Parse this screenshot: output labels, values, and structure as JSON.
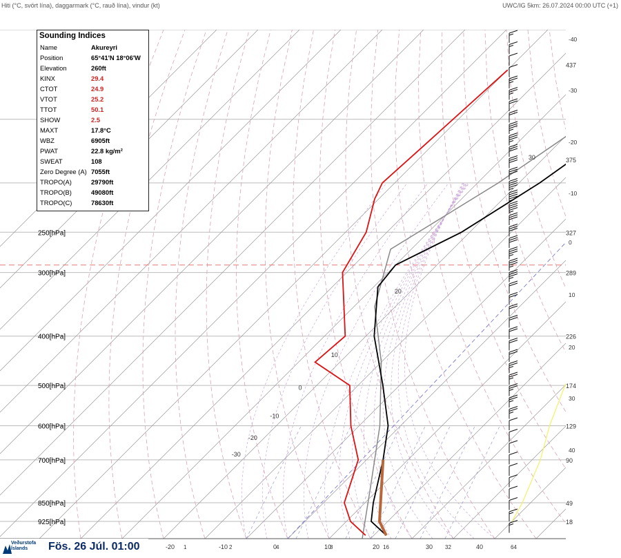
{
  "header": {
    "left": "Hiti (°C, svört lína), daggarmark (°C, rauð lína), vindur (kt)",
    "right": "UWC/IG 5km: 26.07.2024 00:00 UTC (+1)"
  },
  "indices": {
    "title": "Sounding Indices",
    "rows": [
      {
        "k": "Name",
        "v": "Akureyri"
      },
      {
        "k": "Position",
        "v": "65°41'N 18°06'W"
      },
      {
        "k": "Elevation",
        "v": "260ft"
      },
      {
        "k": "KINX",
        "v": "29.4",
        "warn": true
      },
      {
        "k": "CTOT",
        "v": "24.9",
        "warn": true
      },
      {
        "k": "VTOT",
        "v": "25.2",
        "warn": true
      },
      {
        "k": "TTOT",
        "v": "50.1",
        "warn": true
      },
      {
        "k": "SHOW",
        "v": "2.5",
        "warn": true
      },
      {
        "k": "MAXT",
        "v": "17.8°C"
      },
      {
        "k": "WBZ",
        "v": "6905ft"
      },
      {
        "k": "PWAT",
        "v": "22.8 kg/m²"
      },
      {
        "k": "SWEAT",
        "v": "108"
      },
      {
        "k": "Zero Degree (A)",
        "v": "7055ft"
      },
      {
        "k": "TROPO(A)",
        "v": "29790ft"
      },
      {
        "k": "TROPO(B)",
        "v": "49080ft"
      },
      {
        "k": "TROPO(C)",
        "v": "78630ft"
      }
    ]
  },
  "footer": {
    "logo_text_1": "Veðurstofa",
    "logo_text_2": "Íslands",
    "date": "Fös. 26 Júl. 01:00"
  },
  "chart_data": {
    "type": "line",
    "title": "",
    "xlabel": "",
    "ylabel": "",
    "pressure_ticks": [
      {
        "p": 250,
        "label": "250[hPa]",
        "right": "327"
      },
      {
        "p": 300,
        "label": "300[hPa]",
        "right": "289"
      },
      {
        "p": 400,
        "label": "400[hPa]",
        "right": "226"
      },
      {
        "p": 500,
        "label": "500[hPa]",
        "right": "174"
      },
      {
        "p": 600,
        "label": "600[hPa]",
        "right": "129"
      },
      {
        "p": 700,
        "label": "700[hPa]",
        "right": "90"
      },
      {
        "p": 850,
        "label": "850[hPa]",
        "right": "49"
      },
      {
        "p": 925,
        "label": "925[hPa]",
        "right": "18"
      }
    ],
    "extra_right_labels": [
      {
        "p": 117,
        "label": "437"
      },
      {
        "p": 180,
        "label": "375"
      }
    ],
    "temp_axis_right": [
      "-40",
      "-30",
      "-20",
      "-10",
      "0",
      "10",
      "20",
      "30",
      "40"
    ],
    "bottom_axis_labels": [
      "-20",
      "-10",
      "0",
      "10",
      "20",
      "30",
      "40"
    ],
    "mixing_ratio_labels": [
      "1",
      "2",
      "4",
      "8",
      "16",
      "32",
      "64"
    ],
    "isotherm_labels": [
      "30",
      "20",
      "10",
      "0",
      "-10",
      "-20",
      "-30"
    ],
    "tropopause_levels_hpa": [
      96,
      290
    ],
    "series": [
      {
        "name": "",
        "color": "#000000",
        "points": [
          [
            -24,
            120
          ],
          [
            -35,
            200
          ],
          [
            -42,
            250
          ],
          [
            -50,
            290
          ],
          [
            -49,
            320
          ],
          [
            -38,
            400
          ],
          [
            -24,
            500
          ],
          [
            -13,
            600
          ],
          [
            -6,
            700
          ],
          [
            2,
            850
          ],
          [
            6,
            925
          ],
          [
            13,
            985
          ]
        ]
      },
      {
        "name": "",
        "color": "#dd1111",
        "points": [
          [
            -70,
            120
          ],
          [
            -72,
            170
          ],
          [
            -73,
            200
          ],
          [
            -71,
            215
          ],
          [
            -65,
            250
          ],
          [
            -61,
            300
          ],
          [
            -45,
            400
          ],
          [
            -46,
            450
          ],
          [
            -32,
            500
          ],
          [
            -22,
            600
          ],
          [
            -12,
            700
          ],
          [
            -5,
            850
          ],
          [
            1,
            925
          ],
          [
            8,
            985
          ]
        ]
      }
    ],
    "parcel_line": [
      [
        -6,
        700
      ],
      [
        8,
        925
      ],
      [
        13,
        985
      ]
    ],
    "wind_barbs_kt": [
      5,
      5,
      10,
      10,
      15,
      15,
      20,
      20,
      25,
      25,
      30,
      30,
      30,
      35,
      35,
      35,
      30,
      30,
      30,
      25,
      25,
      25,
      20,
      20,
      20,
      20,
      20,
      20,
      20,
      15,
      15,
      15,
      15,
      15,
      10,
      10,
      10,
      10,
      10,
      10,
      10,
      10,
      5,
      5
    ]
  }
}
